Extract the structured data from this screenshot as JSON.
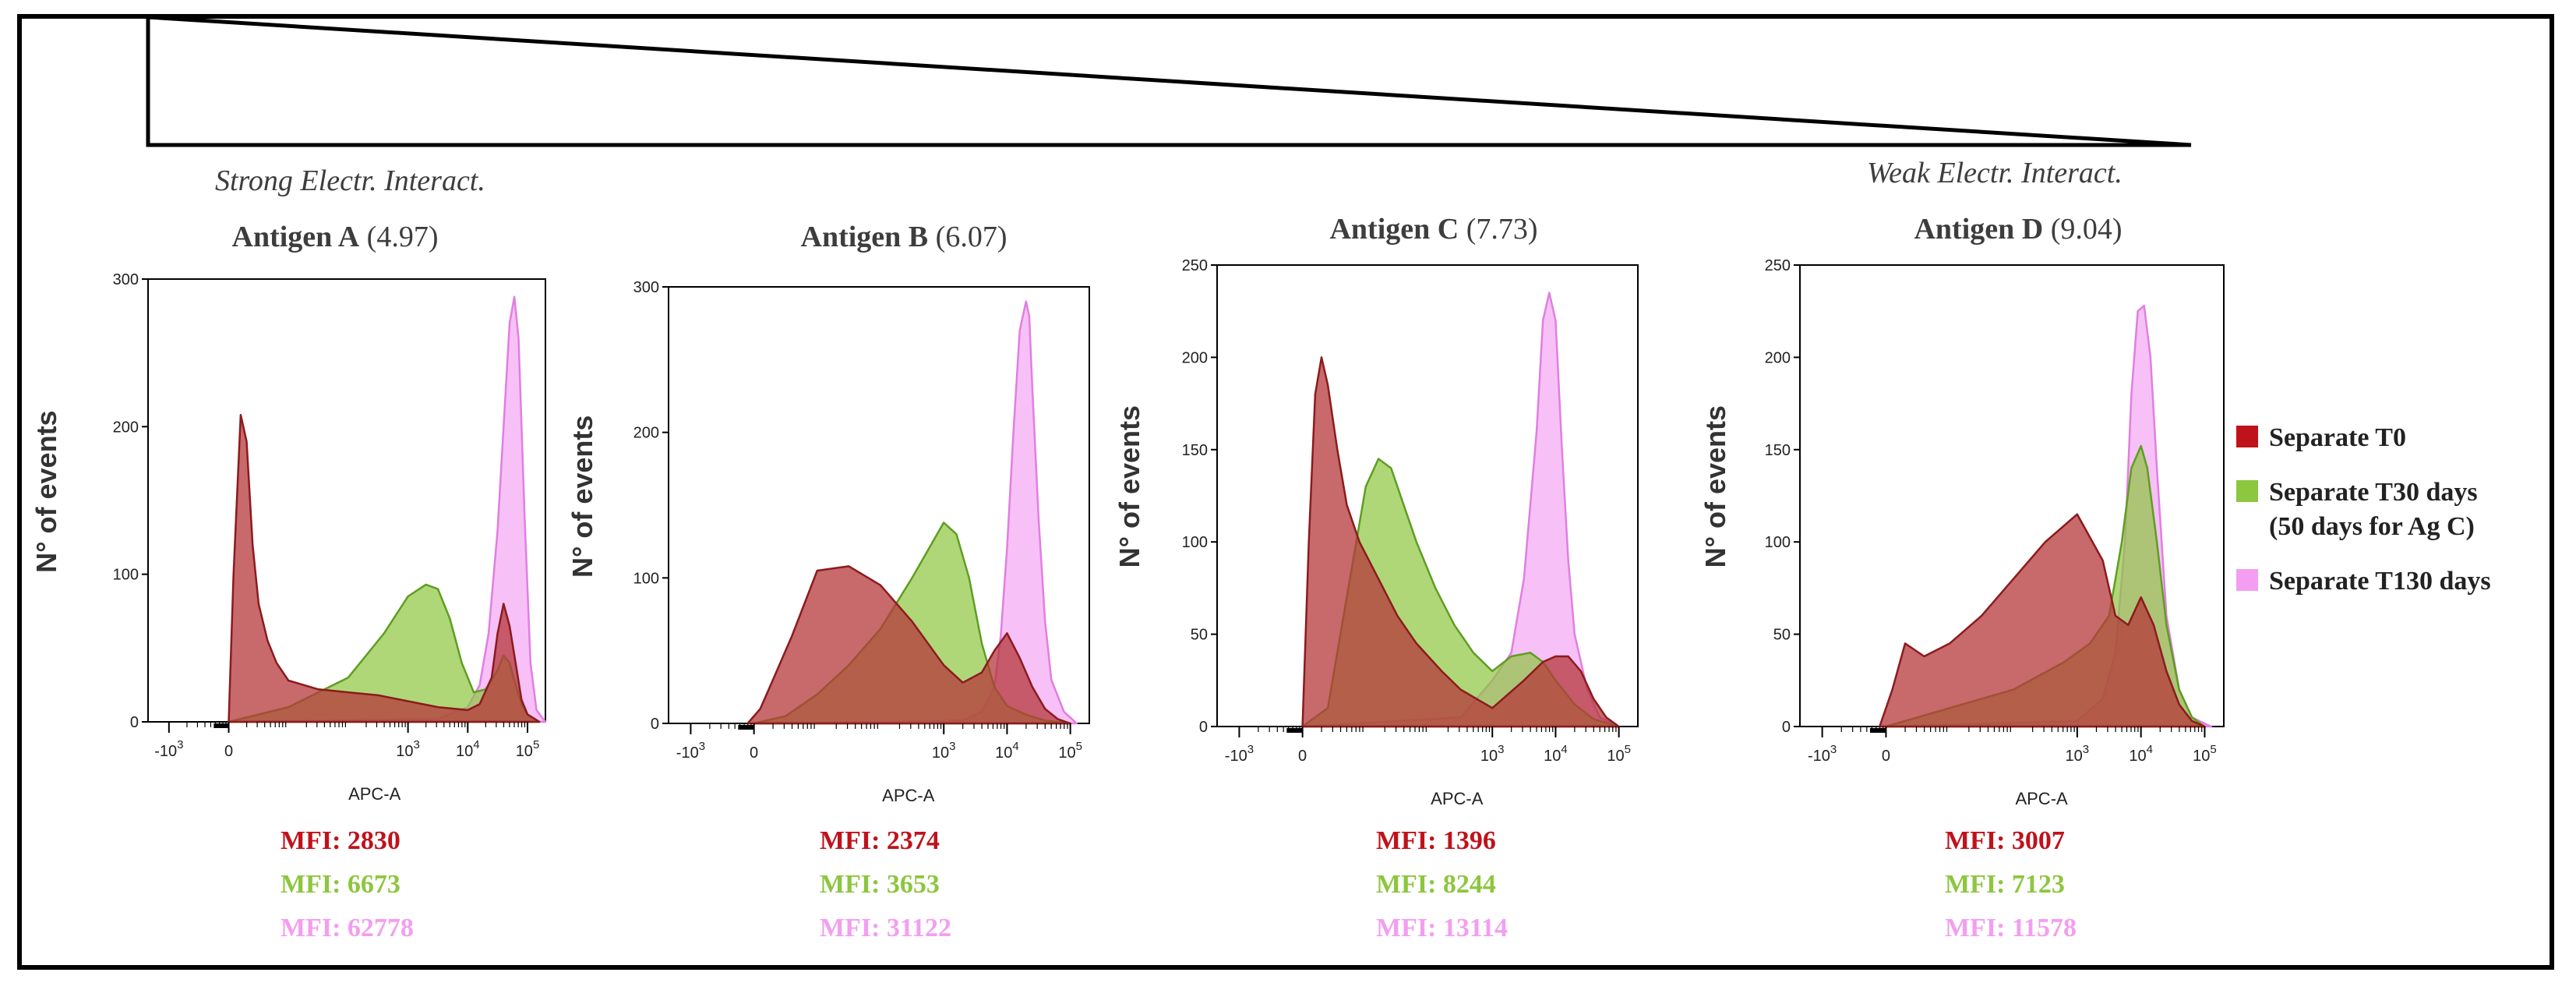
{
  "colors": {
    "t0": "#b5373b",
    "t30": "#8dc63f",
    "t130": "#f29ef2",
    "t0_text": "#c0121b",
    "t30_text": "#8dc63f",
    "t130_text": "#f39ef1"
  },
  "header": {
    "strong_label": "Strong Electr. Interact.",
    "weak_label": "Weak Electr. Interact."
  },
  "legend": {
    "items": [
      {
        "label_line1": "Separate T0",
        "label_line2": ""
      },
      {
        "label_line1": "Separate T30 days",
        "label_line2": "(50 days for Ag C)"
      },
      {
        "label_line1": "Separate T130 days",
        "label_line2": ""
      }
    ]
  },
  "chart_data": [
    {
      "type": "area",
      "antigen": "Antigen A",
      "pi": "(4.97)",
      "xlabel": "APC-A",
      "ylabel": "N° of events",
      "ylim": [
        0,
        300
      ],
      "yticks": [
        "0",
        "100",
        "200",
        "300"
      ],
      "xticks": [
        "-10",
        "0",
        "10",
        "10",
        "10"
      ],
      "xtick_exp": [
        "3",
        "",
        "3",
        "4",
        "5"
      ],
      "xtick_pos": [
        -1,
        0,
        3,
        4,
        5
      ],
      "series": [
        {
          "name": "Separate T0",
          "x": [
            0,
            0.08,
            0.2,
            0.3,
            0.4,
            0.5,
            0.65,
            0.8,
            1,
            1.5,
            2,
            2.5,
            3,
            3.5,
            4,
            4.2,
            4.4,
            4.5,
            4.6,
            4.7,
            4.8,
            4.9,
            5,
            5.2
          ],
          "y": [
            0,
            100,
            208,
            190,
            120,
            80,
            55,
            40,
            28,
            22,
            20,
            18,
            14,
            10,
            8,
            12,
            30,
            60,
            80,
            65,
            40,
            15,
            5,
            0
          ]
        },
        {
          "name": "Separate T30 days",
          "x": [
            0,
            1,
            2,
            2.6,
            3,
            3.3,
            3.5,
            3.7,
            3.9,
            4.1,
            4.3,
            4.5,
            4.6,
            4.7,
            4.8,
            4.9,
            5,
            5.2
          ],
          "y": [
            0,
            10,
            30,
            60,
            85,
            93,
            90,
            70,
            40,
            20,
            22,
            35,
            45,
            40,
            25,
            12,
            5,
            0
          ]
        },
        {
          "name": "Separate T130 days",
          "x": [
            0,
            3.5,
            4.0,
            4.2,
            4.35,
            4.5,
            4.6,
            4.7,
            4.78,
            4.85,
            4.95,
            5.05,
            5.15,
            5.3
          ],
          "y": [
            0,
            2,
            10,
            25,
            60,
            130,
            200,
            270,
            288,
            260,
            140,
            40,
            8,
            0
          ]
        }
      ],
      "mfi": [
        "MFI: 2830",
        "MFI: 6673",
        "MFI: 62778"
      ]
    },
    {
      "type": "area",
      "antigen": "Antigen B",
      "pi": "(6.07)",
      "xlabel": "APC-A",
      "ylabel": "N° of events",
      "ylim": [
        0,
        300
      ],
      "yticks": [
        "0",
        "100",
        "200",
        "300"
      ],
      "xticks": [
        "-10",
        "0",
        "10",
        "10",
        "10"
      ],
      "xtick_exp": [
        "3",
        "",
        "3",
        "4",
        "5"
      ],
      "xtick_pos": [
        -1,
        0,
        3,
        4,
        5
      ],
      "series": [
        {
          "name": "Separate T0",
          "x": [
            -0.1,
            0.1,
            0.3,
            0.6,
            1,
            1.5,
            2,
            2.5,
            3,
            3.3,
            3.6,
            3.8,
            4.0,
            4.2,
            4.4,
            4.6,
            4.8,
            5
          ],
          "y": [
            0,
            10,
            30,
            60,
            105,
            108,
            95,
            70,
            40,
            28,
            35,
            50,
            62,
            45,
            25,
            10,
            3,
            0
          ]
        },
        {
          "name": "Separate T30 days",
          "x": [
            0,
            0.5,
            1,
            1.5,
            2,
            2.5,
            3,
            3.2,
            3.4,
            3.6,
            3.8,
            4,
            4.3,
            4.6,
            5
          ],
          "y": [
            0,
            5,
            20,
            40,
            65,
            100,
            138,
            130,
            100,
            55,
            25,
            12,
            6,
            2,
            0
          ]
        },
        {
          "name": "Separate T130 days",
          "x": [
            0,
            3.3,
            3.6,
            3.8,
            3.9,
            4.0,
            4.1,
            4.2,
            4.3,
            4.35,
            4.4,
            4.5,
            4.6,
            4.7,
            4.9,
            5.1
          ],
          "y": [
            0,
            2,
            8,
            25,
            60,
            120,
            200,
            270,
            290,
            280,
            230,
            140,
            70,
            30,
            8,
            0
          ]
        }
      ],
      "mfi": [
        "MFI: 2374",
        "MFI: 3653",
        "MFI: 31122"
      ]
    },
    {
      "type": "area",
      "antigen": "Antigen C",
      "pi": "(7.73)",
      "xlabel": "APC-A",
      "ylabel": "N° of events",
      "ylim": [
        0,
        250
      ],
      "yticks": [
        "0",
        "50",
        "100",
        "150",
        "200",
        "250"
      ],
      "xticks": [
        "-10",
        "0",
        "10",
        "10",
        "10"
      ],
      "xtick_exp": [
        "3",
        "",
        "3",
        "4",
        "5"
      ],
      "xtick_pos": [
        -1,
        0,
        3,
        4,
        5
      ],
      "series": [
        {
          "name": "Separate T0",
          "x": [
            0,
            0.1,
            0.2,
            0.3,
            0.4,
            0.55,
            0.7,
            0.9,
            1.2,
            1.5,
            1.8,
            2.2,
            2.5,
            3,
            3.5,
            3.8,
            4.0,
            4.2,
            4.4,
            4.6,
            4.8,
            5
          ],
          "y": [
            0,
            100,
            180,
            200,
            185,
            150,
            120,
            100,
            80,
            60,
            45,
            30,
            20,
            10,
            25,
            35,
            38,
            38,
            30,
            15,
            5,
            0
          ]
        },
        {
          "name": "Separate T30 days",
          "x": [
            0,
            0.4,
            0.6,
            0.8,
            1,
            1.2,
            1.4,
            1.6,
            1.8,
            2.1,
            2.4,
            2.7,
            3,
            3.3,
            3.6,
            3.8,
            4.0,
            4.3,
            4.6,
            5
          ],
          "y": [
            0,
            10,
            50,
            90,
            130,
            145,
            140,
            120,
            100,
            75,
            55,
            40,
            30,
            38,
            40,
            35,
            25,
            12,
            4,
            0
          ]
        },
        {
          "name": "Separate T130 days",
          "x": [
            0,
            2.5,
            3.0,
            3.3,
            3.5,
            3.7,
            3.8,
            3.9,
            4.0,
            4.1,
            4.2,
            4.3,
            4.5,
            4.7,
            5
          ],
          "y": [
            0,
            5,
            25,
            40,
            80,
            160,
            220,
            235,
            220,
            150,
            90,
            50,
            20,
            5,
            0
          ]
        }
      ],
      "mfi": [
        "MFI: 1396",
        "MFI: 8244",
        "MFI: 13114"
      ]
    },
    {
      "type": "area",
      "antigen": "Antigen D",
      "pi": "(9.04)",
      "xlabel": "APC-A",
      "ylabel": "N° of events",
      "ylim": [
        0,
        250
      ],
      "yticks": [
        "0",
        "50",
        "100",
        "150",
        "200",
        "250"
      ],
      "xticks": [
        "-10",
        "0",
        "10",
        "10",
        "10"
      ],
      "xtick_exp": [
        "3",
        "",
        "3",
        "4",
        "5"
      ],
      "xtick_pos": [
        -1,
        0,
        3,
        4,
        5
      ],
      "series": [
        {
          "name": "Separate T0",
          "x": [
            -0.1,
            0.1,
            0.3,
            0.6,
            1,
            1.5,
            2,
            2.5,
            3,
            3.4,
            3.6,
            3.8,
            4,
            4.2,
            4.4,
            4.6,
            4.8,
            5
          ],
          "y": [
            0,
            20,
            45,
            38,
            45,
            60,
            80,
            100,
            115,
            90,
            60,
            55,
            70,
            55,
            30,
            12,
            3,
            0
          ]
        },
        {
          "name": "Separate T30 days",
          "x": [
            0,
            1,
            2,
            2.8,
            3.2,
            3.5,
            3.7,
            3.85,
            4,
            4.1,
            4.25,
            4.4,
            4.6,
            4.8,
            5
          ],
          "y": [
            0,
            10,
            20,
            35,
            45,
            60,
            100,
            140,
            152,
            140,
            100,
            55,
            20,
            5,
            0
          ]
        },
        {
          "name": "Separate T130 days",
          "x": [
            0,
            3.0,
            3.4,
            3.6,
            3.75,
            3.85,
            3.95,
            4.05,
            4.15,
            4.25,
            4.4,
            4.6,
            4.8,
            5.1
          ],
          "y": [
            0,
            3,
            15,
            40,
            100,
            180,
            225,
            228,
            200,
            140,
            60,
            20,
            5,
            0
          ]
        }
      ],
      "mfi": [
        "MFI: 3007",
        "MFI: 7123",
        "MFI: 11578"
      ]
    }
  ]
}
